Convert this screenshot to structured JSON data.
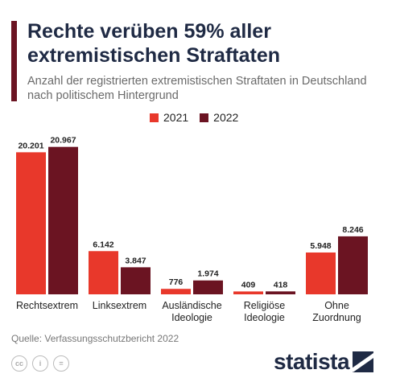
{
  "title": "Rechte verüben 59% aller extremistischen Straftaten",
  "subtitle": "Anzahl der registrierten extremistischen Straftaten in Deutschland nach politischem Hintergrund",
  "source": "Quelle: Verfassungsschutzbericht 2022",
  "brand": "statista",
  "colors": {
    "y2021": "#e8382b",
    "y2022": "#6b1422",
    "title": "#1f2a44"
  },
  "chart_data": {
    "type": "bar",
    "title": "Rechte verüben 59% aller extremistischen Straftaten",
    "subtitle": "Anzahl der registrierten extremistischen Straftaten in Deutschland nach politischem Hintergrund",
    "categories": [
      "Rechtsextrem",
      "Linksextrem",
      "Ausländische Ideologie",
      "Religiöse Ideologie",
      "Ohne Zuordnung"
    ],
    "category_lines": [
      [
        "Rechtsextrem"
      ],
      [
        "Linksextrem"
      ],
      [
        "Ausländische",
        "Ideologie"
      ],
      [
        "Religiöse",
        "Ideologie"
      ],
      [
        "Ohne",
        "Zuordnung"
      ]
    ],
    "series": [
      {
        "name": "2021",
        "color": "#e8382b",
        "values": [
          20201,
          6142,
          776,
          409,
          5948
        ],
        "labels": [
          "20.201",
          "6.142",
          "776",
          "409",
          "5.948"
        ]
      },
      {
        "name": "2022",
        "color": "#6b1422",
        "values": [
          20967,
          3847,
          1974,
          418,
          8246
        ],
        "labels": [
          "20.967",
          "3.847",
          "1.974",
          "418",
          "8.246"
        ]
      }
    ],
    "ylim": [
      0,
      21500
    ],
    "grid": false,
    "legend": "top-center"
  }
}
